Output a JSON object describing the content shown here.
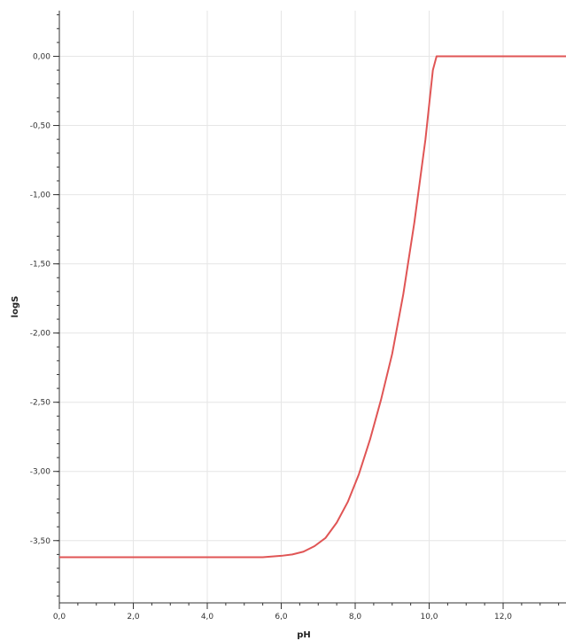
{
  "chart_data": {
    "type": "line",
    "xlabel": "pH",
    "ylabel": "logS",
    "xlim": [
      0,
      13.7
    ],
    "ylim": [
      -3.95,
      0.33
    ],
    "x_ticks": [
      0,
      2,
      4,
      6,
      8,
      10,
      12
    ],
    "x_tick_labels": [
      "0,0",
      "2,0",
      "4,0",
      "6,0",
      "8,0",
      "10,0",
      "12,0"
    ],
    "y_ticks": [
      0,
      -0.5,
      -1.0,
      -1.5,
      -2.0,
      -2.5,
      -3.0,
      -3.5
    ],
    "y_tick_labels": [
      "0,00",
      "-0,50",
      "-1,00",
      "-1,50",
      "-2,00",
      "-2,50",
      "-3,00",
      "-3,50"
    ],
    "x_minor_step": 0.5,
    "y_minor_step": 0.1,
    "grid": true,
    "line_color": "#e05555",
    "grid_color": "#e6e6e6",
    "series": [
      {
        "points": [
          [
            0.0,
            -3.62
          ],
          [
            1.0,
            -3.62
          ],
          [
            2.0,
            -3.62
          ],
          [
            3.0,
            -3.62
          ],
          [
            4.0,
            -3.62
          ],
          [
            5.0,
            -3.62
          ],
          [
            5.5,
            -3.62
          ],
          [
            6.0,
            -3.61
          ],
          [
            6.3,
            -3.6
          ],
          [
            6.6,
            -3.58
          ],
          [
            6.9,
            -3.54
          ],
          [
            7.2,
            -3.48
          ],
          [
            7.5,
            -3.37
          ],
          [
            7.8,
            -3.22
          ],
          [
            8.1,
            -3.02
          ],
          [
            8.4,
            -2.77
          ],
          [
            8.7,
            -2.48
          ],
          [
            9.0,
            -2.15
          ],
          [
            9.3,
            -1.72
          ],
          [
            9.6,
            -1.2
          ],
          [
            9.9,
            -0.6
          ],
          [
            10.1,
            -0.1
          ],
          [
            10.2,
            0.0
          ],
          [
            11.0,
            0.0
          ],
          [
            12.0,
            0.0
          ],
          [
            13.0,
            0.0
          ],
          [
            13.7,
            0.0
          ]
        ]
      }
    ]
  }
}
